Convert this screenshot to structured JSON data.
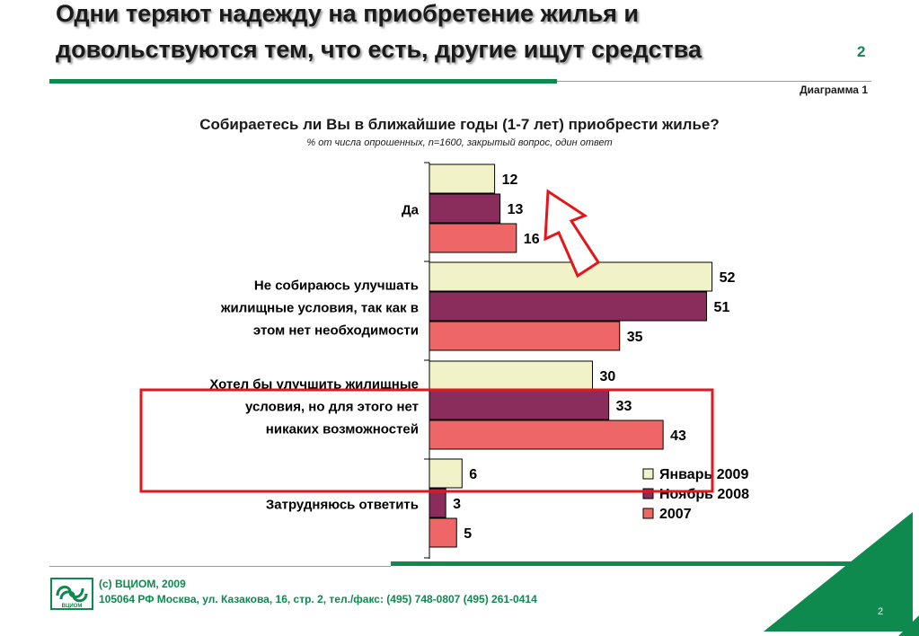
{
  "header": {
    "title_line1": "Одни теряют надежду на  приобретение жилья и",
    "title_line2": "довольствуются тем, что есть, другие ищут средства",
    "slide_number": "2",
    "diagram_label": "Диаграмма 1"
  },
  "chart_data": {
    "type": "bar",
    "orientation": "horizontal",
    "title": "Собираетесь ли Вы в ближайшие годы (1-7 лет) приобрести жилье?",
    "subtitle": "% от числа опрошенных, n=1600, закрытый вопрос, один ответ",
    "categories": [
      [
        "Да"
      ],
      [
        "Не собираюсь улучшать",
        "жилищные условия, так как в",
        "этом нет необходимости"
      ],
      [
        "Хотел бы улучшить жилищные",
        "условия, но для этого нет",
        "никаких возможностей"
      ],
      [
        "Затрудняюсь ответить"
      ]
    ],
    "series": [
      {
        "name": "Январь 2009",
        "values": [
          12,
          52,
          30,
          6
        ],
        "color": "#f2f2c8"
      },
      {
        "name": "Ноябрь 2008",
        "values": [
          13,
          51,
          33,
          3
        ],
        "color": "#8b2d5c"
      },
      {
        "name": "2007",
        "values": [
          16,
          35,
          43,
          5
        ],
        "color": "#ef6666"
      }
    ],
    "xlim": [
      0,
      60
    ],
    "legend_position": "bottom-right",
    "grid": false,
    "annotations": [
      "red upward arrow pointing to category 'Да'",
      "red rectangle highlighting category 'Хотел бы улучшить жилищные условия, но для этого нет никаких возможностей'"
    ]
  },
  "footer": {
    "copyright": "(с) ВЦИОМ, 2009",
    "address": "105064 РФ Москва, ул. Казакова, 16, стр. 2, тел./факс: (495) 748-0807 (495) 261-0414",
    "logo_text": "ВЦИОМ",
    "page_number": "2"
  },
  "colors": {
    "accent_green": "#0e8a4e",
    "highlight_red": "#e3161b"
  }
}
